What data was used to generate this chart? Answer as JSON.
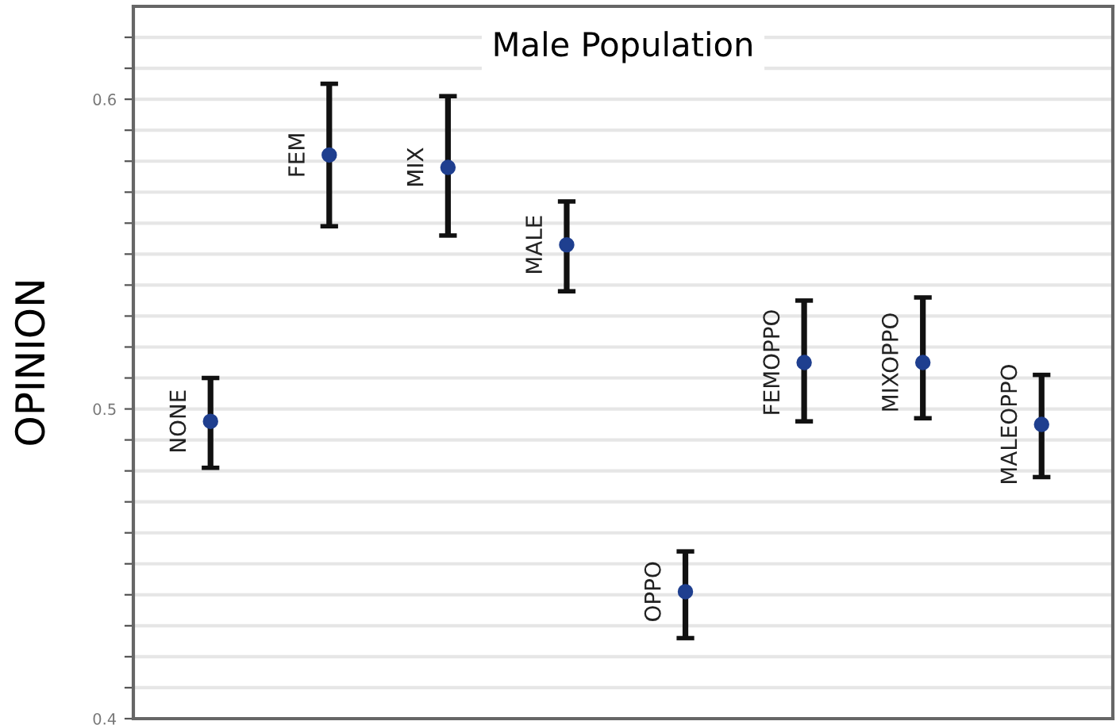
{
  "chart_data": {
    "type": "scatter",
    "title": "Male Population",
    "ylabel": "OPINION",
    "categories": [
      "NONE",
      "FEM",
      "MIX",
      "MALE",
      "OPPO",
      "FEMOPPO",
      "MIXOPPO",
      "MALEOPPO"
    ],
    "values": [
      0.496,
      0.582,
      0.578,
      0.553,
      0.441,
      0.515,
      0.515,
      0.495
    ],
    "errors": [
      [
        0.481,
        0.51
      ],
      [
        0.559,
        0.605
      ],
      [
        0.556,
        0.601
      ],
      [
        0.538,
        0.567
      ],
      [
        0.426,
        0.454
      ],
      [
        0.496,
        0.535
      ],
      [
        0.497,
        0.536
      ],
      [
        0.478,
        0.511
      ]
    ],
    "color": "#1f3f8f",
    "marker": "circle",
    "grid": "y",
    "tick_labels": "y",
    "ylim": [
      0.4,
      0.63
    ],
    "yticks": [
      0.4,
      {
        "value": 0.41,
        "label": null
      },
      {
        "value": 0.42,
        "label": null
      },
      {
        "value": 0.43,
        "label": null
      },
      {
        "value": 0.44,
        "label": null
      },
      {
        "value": 0.45,
        "label": null
      },
      {
        "value": 0.46,
        "label": null
      },
      {
        "value": 0.47,
        "label": null
      },
      {
        "value": 0.48,
        "label": null
      },
      {
        "value": 0.49,
        "label": null
      },
      0.5,
      {
        "value": 0.51,
        "label": null
      },
      {
        "value": 0.52,
        "label": null
      },
      {
        "value": 0.53,
        "label": null
      },
      {
        "value": 0.54,
        "label": null
      },
      {
        "value": 0.55,
        "label": null
      },
      {
        "value": 0.56,
        "label": null
      },
      {
        "value": 0.57,
        "label": null
      },
      {
        "value": 0.58,
        "label": null
      },
      {
        "value": 0.59,
        "label": null
      },
      0.6,
      {
        "value": 0.61,
        "label": null
      },
      {
        "value": 0.62,
        "label": null
      }
    ]
  }
}
